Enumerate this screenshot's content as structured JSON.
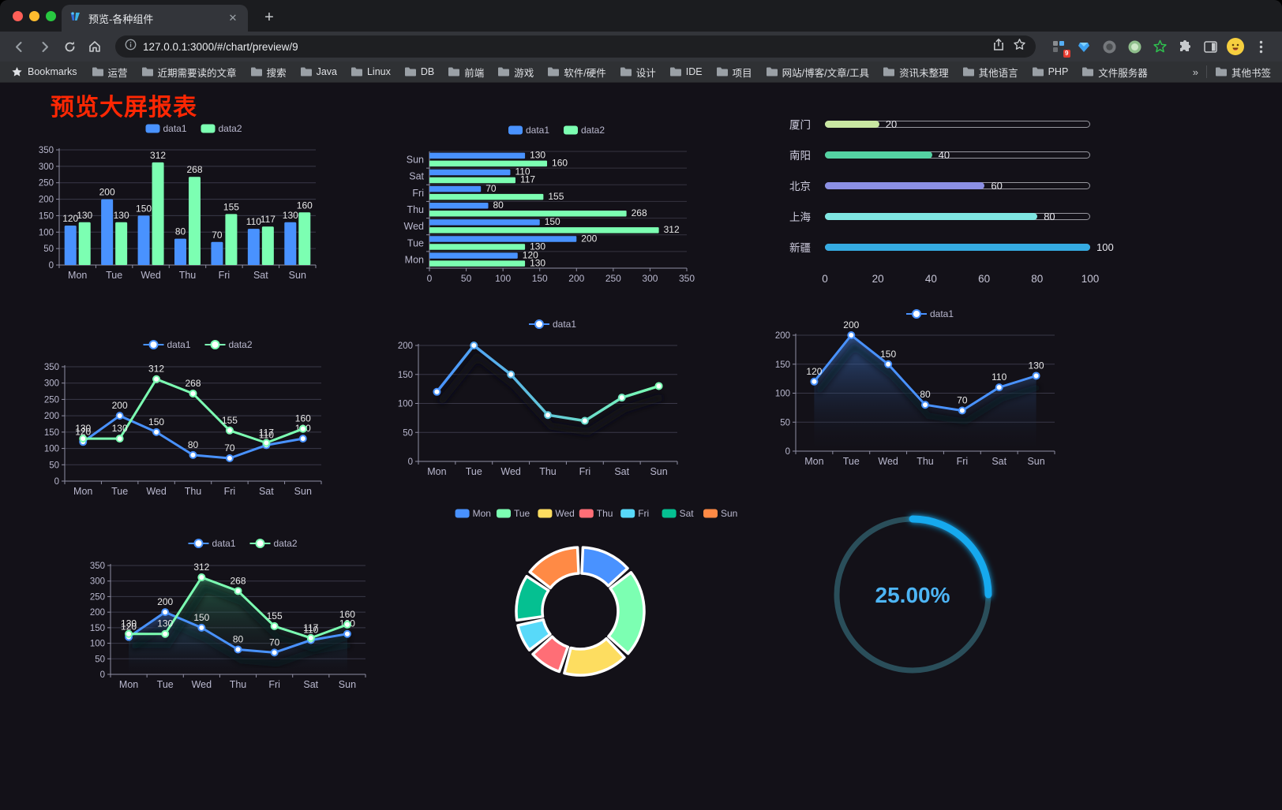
{
  "browser": {
    "tab_title": "预览-各种组件",
    "url": "127.0.0.1:3000/#/chart/preview/9",
    "bookmarks_label": "Bookmarks",
    "bookmarks": [
      "运营",
      "近期需要读的文章",
      "搜索",
      "Java",
      "Linux",
      "DB",
      "前端",
      "游戏",
      "软件/硬件",
      "设计",
      "IDE",
      "项目",
      "网站/博客/文章/工具",
      "资讯未整理",
      "其他语言",
      "PHP",
      "文件服务器"
    ],
    "overflow_chevron": "»",
    "other_bookmarks": "其他书签",
    "ext_badge": "9"
  },
  "page": {
    "title": "预览大屏报表",
    "title_color": "#fe2703",
    "background": "#131118"
  },
  "chart_data": [
    {
      "id": "bar-vertical",
      "type": "bar",
      "categories": [
        "Mon",
        "Tue",
        "Wed",
        "Thu",
        "Fri",
        "Sat",
        "Sun"
      ],
      "series": [
        {
          "name": "data1",
          "color": "#4992ff",
          "values": [
            120,
            200,
            150,
            80,
            70,
            110,
            130
          ]
        },
        {
          "name": "data2",
          "color": "#7cffb2",
          "values": [
            130,
            130,
            312,
            268,
            155,
            117,
            160
          ]
        }
      ],
      "ylim": [
        0,
        350
      ],
      "ystep": 50,
      "legend_position": "top",
      "grid": true,
      "show_labels": true
    },
    {
      "id": "bar-horizontal",
      "type": "hbar",
      "categories": [
        "Mon",
        "Tue",
        "Wed",
        "Thu",
        "Fri",
        "Sat",
        "Sun"
      ],
      "series": [
        {
          "name": "data1",
          "color": "#4992ff",
          "values": [
            120,
            200,
            150,
            80,
            70,
            110,
            130
          ]
        },
        {
          "name": "data2",
          "color": "#7cffb2",
          "values": [
            130,
            130,
            312,
            268,
            155,
            117,
            160
          ]
        }
      ],
      "xlim": [
        0,
        350
      ],
      "xstep": 50,
      "legend_position": "top",
      "show_labels": true
    },
    {
      "id": "progress-bars",
      "type": "bar-progress",
      "rows": [
        {
          "label": "厦门",
          "value": 20,
          "color": "#c9e7a2"
        },
        {
          "label": "南阳",
          "value": 40,
          "color": "#54d2a2"
        },
        {
          "label": "北京",
          "value": 60,
          "color": "#8b8fe3"
        },
        {
          "label": "上海",
          "value": 80,
          "color": "#7fe6e2"
        },
        {
          "label": "新疆",
          "value": 100,
          "color": "#35abe2"
        }
      ],
      "xlim": [
        0,
        100
      ],
      "xticks": [
        0,
        20,
        40,
        60,
        80,
        100
      ]
    },
    {
      "id": "line-basic",
      "type": "line",
      "categories": [
        "Mon",
        "Tue",
        "Wed",
        "Thu",
        "Fri",
        "Sat",
        "Sun"
      ],
      "series": [
        {
          "name": "data1",
          "color": "#4992ff",
          "values": [
            120,
            200,
            150,
            80,
            70,
            110,
            130
          ]
        },
        {
          "name": "data2",
          "color": "#7cffb2",
          "values": [
            130,
            130,
            312,
            268,
            155,
            117,
            160
          ]
        }
      ],
      "ylim": [
        0,
        350
      ],
      "ystep": 50,
      "legend_position": "top",
      "show_labels": true
    },
    {
      "id": "line-gradient",
      "type": "line-gradient",
      "categories": [
        "Mon",
        "Tue",
        "Wed",
        "Thu",
        "Fri",
        "Sat",
        "Sun"
      ],
      "series": [
        {
          "name": "data1",
          "values": [
            120,
            200,
            150,
            80,
            70,
            110,
            130
          ],
          "gradient": [
            "#4992ff",
            "#7cffb2"
          ]
        }
      ],
      "ylim": [
        0,
        200
      ],
      "ystep": 50,
      "legend_position": "top",
      "show_labels": false
    },
    {
      "id": "line-area",
      "type": "line",
      "categories": [
        "Mon",
        "Tue",
        "Wed",
        "Thu",
        "Fri",
        "Sat",
        "Sun"
      ],
      "series": [
        {
          "name": "data1",
          "color": "#4992ff",
          "values": [
            120,
            200,
            150,
            80,
            70,
            110,
            130
          ],
          "area": [
            "rgba(62,115,196,0.65)",
            "rgba(20,25,40,0)"
          ]
        }
      ],
      "ylim": [
        0,
        200
      ],
      "ystep": 50,
      "legend_position": "top",
      "show_labels": true
    },
    {
      "id": "line-area-double",
      "type": "line",
      "categories": [
        "Mon",
        "Tue",
        "Wed",
        "Thu",
        "Fri",
        "Sat",
        "Sun"
      ],
      "series": [
        {
          "name": "data1",
          "color": "#4992ff",
          "values": [
            120,
            200,
            150,
            80,
            70,
            110,
            130
          ],
          "area": [
            "rgba(58,108,190,0.5)",
            "rgba(20,25,40,0)"
          ]
        },
        {
          "name": "data2",
          "color": "#7cffb2",
          "values": [
            130,
            130,
            312,
            268,
            155,
            117,
            160
          ],
          "area": [
            "rgba(52,150,105,0.55)",
            "rgba(20,25,40,0)"
          ]
        }
      ],
      "ylim": [
        0,
        350
      ],
      "ystep": 50,
      "legend_position": "top",
      "show_labels": true
    },
    {
      "id": "pie-donut",
      "type": "pie",
      "labels": [
        "Mon",
        "Tue",
        "Wed",
        "Thu",
        "Fri",
        "Sat",
        "Sun"
      ],
      "values": [
        120,
        200,
        150,
        80,
        70,
        110,
        130
      ],
      "colors": [
        "#4992ff",
        "#7cffb2",
        "#fddd60",
        "#ff6e76",
        "#58d9f9",
        "#05c091",
        "#ff8a45"
      ],
      "legend_position": "top",
      "inner_radius_ratio": 0.59
    },
    {
      "id": "gauge",
      "type": "gauge",
      "value": 25,
      "max": 100,
      "label": "25.00%",
      "color": "#17a9ee",
      "track_color": "#2a4e5a",
      "text_color": "#4db5f5"
    }
  ]
}
